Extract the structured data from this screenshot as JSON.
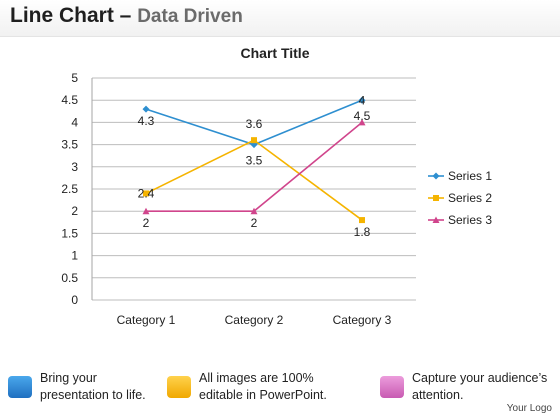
{
  "header": {
    "title_main": "Line Chart",
    "title_dash": " – ",
    "title_sub": "Data Driven"
  },
  "chart_data": {
    "type": "line",
    "title": "Chart Title",
    "categories": [
      "Category 1",
      "Category 2",
      "Category 3"
    ],
    "ylim": [
      0,
      5
    ],
    "yticks": [
      "0",
      "0.5",
      "1",
      "1.5",
      "2",
      "2.5",
      "3",
      "3.5",
      "4",
      "4.5",
      "5"
    ],
    "grid": true,
    "legend_position": "right",
    "series": [
      {
        "name": "Series 1",
        "values": [
          4.3,
          3.5,
          4.5
        ],
        "labels": [
          "4.3",
          "3.5",
          "4.5"
        ],
        "color": "#2e8fd0",
        "marker": "diamond"
      },
      {
        "name": "Series 2",
        "values": [
          2.4,
          3.6,
          1.8
        ],
        "labels": [
          "2.4",
          "3.6",
          "1.8"
        ],
        "color": "#f5b400",
        "marker": "square"
      },
      {
        "name": "Series 3",
        "values": [
          2,
          2,
          4
        ],
        "labels": [
          "2",
          "2",
          "4"
        ],
        "color": "#d0458c",
        "marker": "triangle"
      }
    ]
  },
  "footer": {
    "items": [
      {
        "text": "Bring your presentation to life.",
        "color": "#1f7fd4"
      },
      {
        "text": "All images are 100% editable in PowerPoint.",
        "color": "#f5b400"
      },
      {
        "text": "Capture your audience’s attention.",
        "color": "#d56fc0"
      }
    ],
    "logo": "Your Logo"
  }
}
